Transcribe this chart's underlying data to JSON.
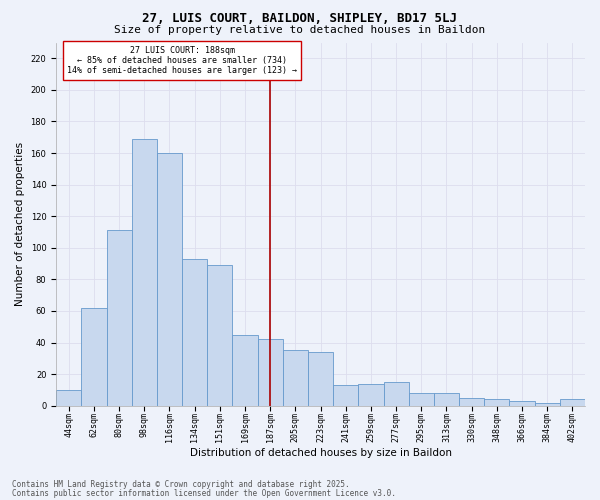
{
  "title_line1": "27, LUIS COURT, BAILDON, SHIPLEY, BD17 5LJ",
  "title_line2": "Size of property relative to detached houses in Baildon",
  "xlabel": "Distribution of detached houses by size in Baildon",
  "ylabel": "Number of detached properties",
  "categories": [
    "44sqm",
    "62sqm",
    "80sqm",
    "98sqm",
    "116sqm",
    "134sqm",
    "151sqm",
    "169sqm",
    "187sqm",
    "205sqm",
    "223sqm",
    "241sqm",
    "259sqm",
    "277sqm",
    "295sqm",
    "313sqm",
    "330sqm",
    "348sqm",
    "366sqm",
    "384sqm",
    "402sqm"
  ],
  "values": [
    10,
    62,
    111,
    169,
    160,
    93,
    89,
    45,
    42,
    35,
    34,
    13,
    14,
    15,
    8,
    8,
    5,
    4,
    3,
    2,
    4
  ],
  "bar_color": "#c8d8ee",
  "bar_edge_color": "#6699cc",
  "vline_x_index": 8,
  "vline_color": "#aa0000",
  "annotation_text": "27 LUIS COURT: 188sqm\n← 85% of detached houses are smaller (734)\n14% of semi-detached houses are larger (123) →",
  "annotation_box_color": "#ffffff",
  "annotation_box_edge": "#cc0000",
  "ylim": [
    0,
    230
  ],
  "yticks": [
    0,
    20,
    40,
    60,
    80,
    100,
    120,
    140,
    160,
    180,
    200,
    220
  ],
  "grid_color": "#ddddee",
  "bg_color": "#eef2fa",
  "footer_line1": "Contains HM Land Registry data © Crown copyright and database right 2025.",
  "footer_line2": "Contains public sector information licensed under the Open Government Licence v3.0.",
  "title_fontsize": 9,
  "subtitle_fontsize": 8,
  "axis_label_fontsize": 7.5,
  "tick_fontsize": 6,
  "annot_fontsize": 6,
  "footer_fontsize": 5.5
}
